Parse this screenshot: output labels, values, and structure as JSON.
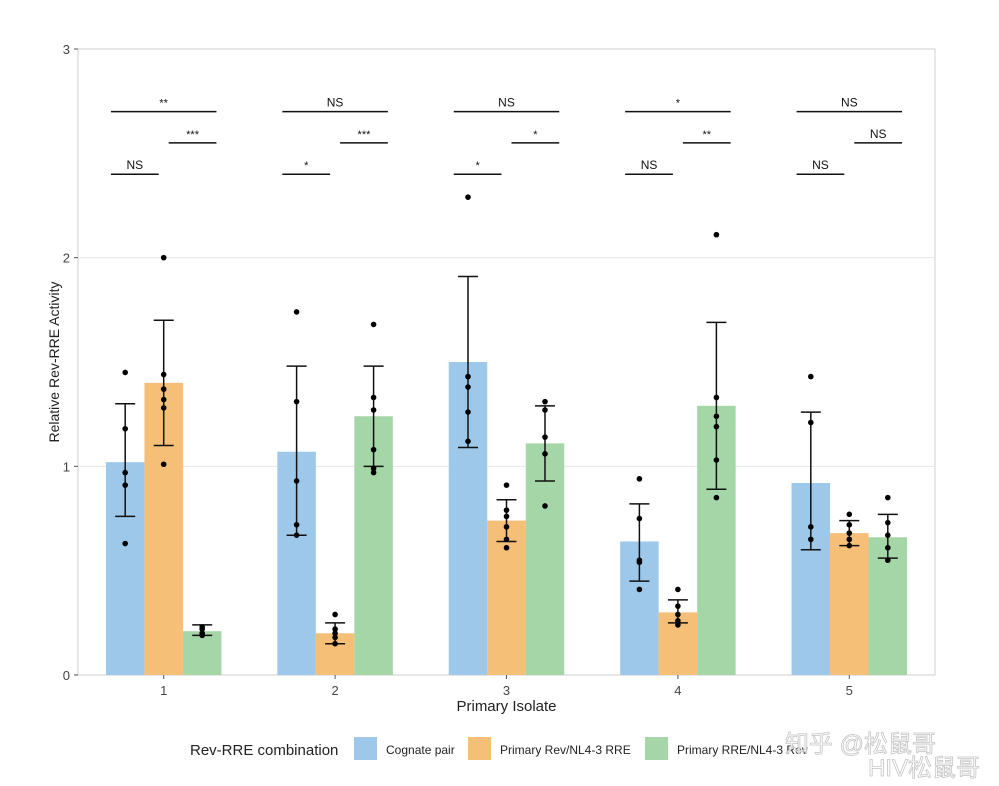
{
  "chart_data": {
    "type": "bar",
    "xlabel": "Primary Isolate",
    "ylabel": "Relative Rev-RRE Activity",
    "ylim": [
      0,
      3
    ],
    "yticks": [
      "0",
      "1",
      "2",
      "3"
    ],
    "grid": true,
    "categories": [
      "1",
      "2",
      "3",
      "4",
      "5"
    ],
    "legend": {
      "title": "Rev-RRE combination",
      "placement": "bottom"
    },
    "series": [
      {
        "name": "Cognate pair",
        "color": "#9dc8ea",
        "values": [
          1.02,
          1.07,
          1.5,
          0.64,
          0.92
        ],
        "err_low": [
          0.76,
          0.67,
          1.09,
          0.45,
          0.6
        ],
        "err_high": [
          1.3,
          1.48,
          1.91,
          0.82,
          1.26
        ],
        "points": [
          [
            1.45,
            1.18,
            0.97,
            0.91,
            0.63
          ],
          [
            1.74,
            1.31,
            0.93,
            0.72,
            0.67
          ],
          [
            2.29,
            1.43,
            1.38,
            1.26,
            1.12
          ],
          [
            0.94,
            0.75,
            0.55,
            0.54,
            0.41
          ],
          [
            1.43,
            1.21,
            0.71,
            0.65
          ]
        ]
      },
      {
        "name": "Primary Rev/NL4-3 RRE",
        "color": "#f6bf78",
        "values": [
          1.4,
          0.2,
          0.74,
          0.3,
          0.68
        ],
        "err_low": [
          1.1,
          0.15,
          0.64,
          0.25,
          0.62
        ],
        "err_high": [
          1.7,
          0.25,
          0.84,
          0.36,
          0.74
        ],
        "points": [
          [
            2.0,
            1.44,
            1.37,
            1.32,
            1.28,
            1.01
          ],
          [
            0.29,
            0.22,
            0.2,
            0.18,
            0.15
          ],
          [
            0.91,
            0.79,
            0.76,
            0.71,
            0.65,
            0.61
          ],
          [
            0.41,
            0.33,
            0.29,
            0.26,
            0.24
          ],
          [
            0.77,
            0.72,
            0.68,
            0.65,
            0.62
          ]
        ]
      },
      {
        "name": "Primary RRE/NL4-3 Rev",
        "color": "#a5d6a7",
        "values": [
          0.21,
          1.24,
          1.11,
          1.29,
          0.66
        ],
        "err_low": [
          0.19,
          1.0,
          0.93,
          0.89,
          0.56
        ],
        "err_high": [
          0.24,
          1.48,
          1.29,
          1.69,
          0.77
        ],
        "points": [
          [
            0.23,
            0.22,
            0.2,
            0.19
          ],
          [
            1.68,
            1.33,
            1.27,
            1.08,
            0.99,
            0.97
          ],
          [
            1.31,
            1.27,
            1.14,
            1.06,
            0.81
          ],
          [
            2.11,
            1.33,
            1.24,
            1.19,
            1.03,
            0.85
          ],
          [
            0.85,
            0.73,
            0.67,
            0.61,
            0.55
          ]
        ]
      }
    ],
    "significance": [
      {
        "cognate_vs_rre": "**",
        "rev_vs_rre": "***",
        "cognate_vs_rev": "NS"
      },
      {
        "cognate_vs_rre": "NS",
        "rev_vs_rre": "***",
        "cognate_vs_rev": "*"
      },
      {
        "cognate_vs_rre": "NS",
        "rev_vs_rre": "*",
        "cognate_vs_rev": "*"
      },
      {
        "cognate_vs_rre": "*",
        "rev_vs_rre": "**",
        "cognate_vs_rev": "NS"
      },
      {
        "cognate_vs_rre": "NS",
        "rev_vs_rre": "NS",
        "cognate_vs_rev": "NS"
      }
    ]
  },
  "watermark": "知乎 @松鼠哥 HIV松鼠哥"
}
